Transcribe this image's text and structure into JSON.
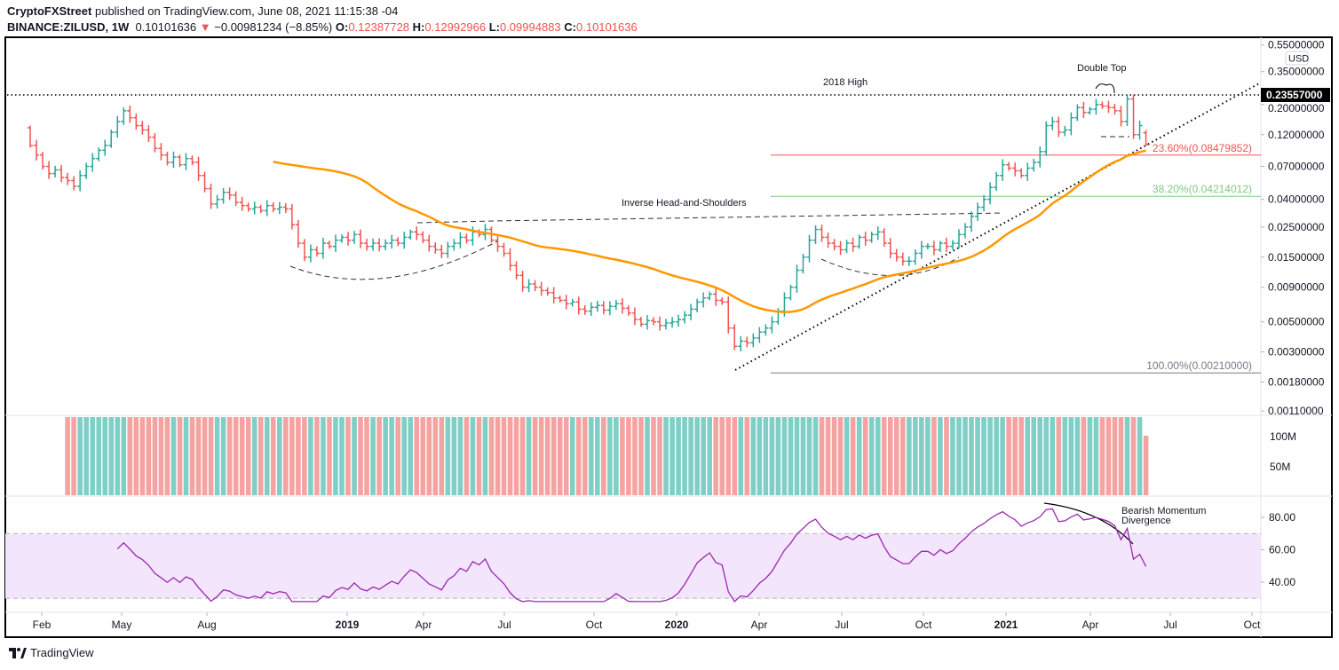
{
  "header": {
    "publisher": "CryptoFXStreet",
    "published_text": "published on TradingView.com, June 08, 2021 11:15:38 -04",
    "symbol": "BINANCE:ZILUSD, 1W",
    "last": "0.10101636",
    "change": "−0.00981234 (−8.85%)",
    "open_label": "O:",
    "open": "0.12387728",
    "high_label": "H:",
    "high": "0.12992966",
    "low_label": "L:",
    "low": "0.09994883",
    "close_label": "C:",
    "close": "0.10101636",
    "down_arrow_icon": "triangle-down"
  },
  "colors": {
    "up": "#26a69a",
    "down": "#ef5350",
    "ma": "#ff9800",
    "rsi": "#9c27b0",
    "rsi_band": "#f3e5fc",
    "fib_23": "#ef5350",
    "fib_38": "#81c784",
    "fib_100": "#787b86"
  },
  "chart_data": {
    "type": "ohlc-bar",
    "interval": "1W",
    "scale": "log",
    "currency_label": "USD",
    "price_axis_ticks": [
      "0.55000000",
      "0.35000000",
      "0.20000000",
      "0.12000000",
      "0.07000000",
      "0.04000000",
      "0.02500000",
      "0.01500000",
      "0.00900000",
      "0.00500000",
      "0.00300000",
      "0.00180000",
      "0.00110000"
    ],
    "current_price_label": "0.23557000",
    "x_tick_labels": [
      "Feb",
      "May",
      "Aug",
      "2019",
      "Apr",
      "Jul",
      "Oct",
      "2020",
      "Apr",
      "Jul",
      "Oct",
      "2021",
      "Apr",
      "Jul",
      "Oct"
    ],
    "weekly_close": [
      0.1,
      0.085,
      0.07,
      0.062,
      0.066,
      0.058,
      0.055,
      0.05,
      0.06,
      0.07,
      0.08,
      0.092,
      0.1,
      0.125,
      0.15,
      0.18,
      0.16,
      0.14,
      0.13,
      0.115,
      0.095,
      0.085,
      0.075,
      0.082,
      0.072,
      0.08,
      0.075,
      0.06,
      0.048,
      0.037,
      0.04,
      0.045,
      0.043,
      0.038,
      0.036,
      0.034,
      0.035,
      0.033,
      0.036,
      0.034,
      0.035,
      0.034,
      0.026,
      0.019,
      0.015,
      0.017,
      0.016,
      0.019,
      0.018,
      0.02,
      0.021,
      0.02,
      0.022,
      0.019,
      0.018,
      0.019,
      0.018,
      0.019,
      0.02,
      0.019,
      0.021,
      0.023,
      0.022,
      0.02,
      0.018,
      0.017,
      0.016,
      0.018,
      0.019,
      0.021,
      0.02,
      0.023,
      0.022,
      0.024,
      0.02,
      0.018,
      0.016,
      0.013,
      0.011,
      0.009,
      0.0095,
      0.009,
      0.0085,
      0.0082,
      0.0075,
      0.0072,
      0.0068,
      0.007,
      0.0062,
      0.006,
      0.0064,
      0.0066,
      0.0061,
      0.0065,
      0.0068,
      0.0063,
      0.0058,
      0.0052,
      0.0048,
      0.0051,
      0.005,
      0.0047,
      0.0049,
      0.005,
      0.0052,
      0.0056,
      0.0062,
      0.007,
      0.0075,
      0.008,
      0.0072,
      0.007,
      0.0045,
      0.0033,
      0.0036,
      0.0035,
      0.0038,
      0.0042,
      0.0045,
      0.005,
      0.006,
      0.0075,
      0.009,
      0.012,
      0.015,
      0.02,
      0.024,
      0.021,
      0.019,
      0.018,
      0.017,
      0.019,
      0.018,
      0.021,
      0.02,
      0.022,
      0.023,
      0.019,
      0.016,
      0.015,
      0.014,
      0.014,
      0.016,
      0.018,
      0.018,
      0.017,
      0.019,
      0.018,
      0.019,
      0.022,
      0.025,
      0.03,
      0.035,
      0.04,
      0.049,
      0.06,
      0.072,
      0.068,
      0.065,
      0.06,
      0.068,
      0.075,
      0.09,
      0.14,
      0.15,
      0.125,
      0.13,
      0.16,
      0.19,
      0.175,
      0.185,
      0.2,
      0.195,
      0.19,
      0.18,
      0.15,
      0.22,
      0.12,
      0.14,
      0.101
    ],
    "volume_axis_ticks": [
      "100M",
      "50M"
    ],
    "last_volume_m": 100,
    "rsi_axis_ticks": [
      "80.00",
      "60.00",
      "40.00"
    ],
    "rsi_band": [
      30,
      70
    ],
    "annotations": {
      "high_2018": "2018 High",
      "double_top": "Double Top",
      "ihs": "Inverse Head-and-Shoulders",
      "divergence_line1": "Bearish Momentum",
      "divergence_line2": "Divergence"
    },
    "fibonacci": [
      {
        "label": "23.60%(0.08479852)",
        "price": 0.08479852
      },
      {
        "label": "38.20%(0.04214012)",
        "price": 0.04214012
      },
      {
        "label": "100.00%(0.00210000)",
        "price": 0.0021
      }
    ],
    "high_2018_price": 0.23557
  },
  "footer": {
    "brand": "TradingView"
  }
}
